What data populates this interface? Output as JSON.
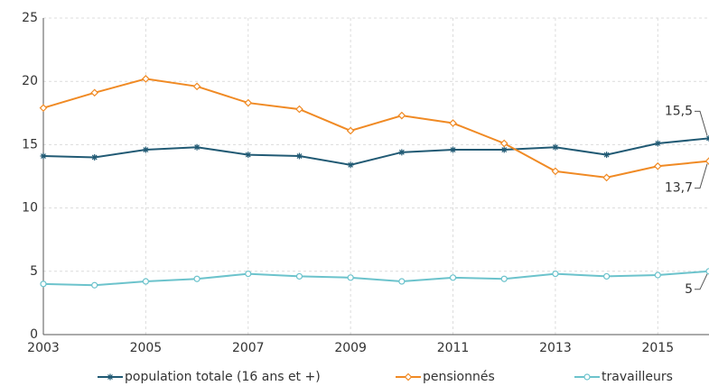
{
  "chart_data": {
    "type": "line",
    "x": [
      2003,
      2004,
      2005,
      2006,
      2007,
      2008,
      2009,
      2010,
      2011,
      2012,
      2013,
      2014,
      2015,
      2016
    ],
    "series": [
      {
        "name": "population totale (16 ans et +)",
        "color": "#215a74",
        "marker": "asterisk",
        "values": [
          14.1,
          14.0,
          14.6,
          14.8,
          14.2,
          14.1,
          13.4,
          14.4,
          14.6,
          14.6,
          14.8,
          14.2,
          15.1,
          15.5
        ],
        "value_labels": [
          null,
          null,
          null,
          null,
          null,
          null,
          null,
          null,
          null,
          null,
          null,
          null,
          null,
          "15,5"
        ]
      },
      {
        "name": "pensionnés",
        "color": "#f08a24",
        "marker": "diamond",
        "values": [
          17.9,
          19.1,
          20.2,
          19.6,
          18.3,
          17.8,
          16.1,
          17.3,
          16.7,
          15.1,
          12.9,
          12.4,
          13.3,
          13.7
        ],
        "value_labels": [
          null,
          null,
          null,
          null,
          null,
          null,
          null,
          null,
          null,
          null,
          null,
          null,
          null,
          "13,7"
        ]
      },
      {
        "name": "travailleurs",
        "color": "#6cc3cc",
        "marker": "circle",
        "values": [
          4.0,
          3.9,
          4.2,
          4.4,
          4.8,
          4.6,
          4.5,
          4.2,
          4.5,
          4.4,
          4.8,
          4.6,
          4.7,
          5.0
        ],
        "value_labels": [
          null,
          null,
          null,
          null,
          null,
          null,
          null,
          null,
          null,
          null,
          null,
          null,
          null,
          "5"
        ]
      }
    ],
    "xlim": [
      2003,
      2016
    ],
    "xticks": [
      2003,
      2005,
      2007,
      2009,
      2011,
      2013,
      2015
    ],
    "ylim": [
      0,
      25
    ],
    "yticks": [
      0,
      5,
      10,
      15,
      20,
      25
    ],
    "grid": true,
    "legend": "bottom"
  }
}
